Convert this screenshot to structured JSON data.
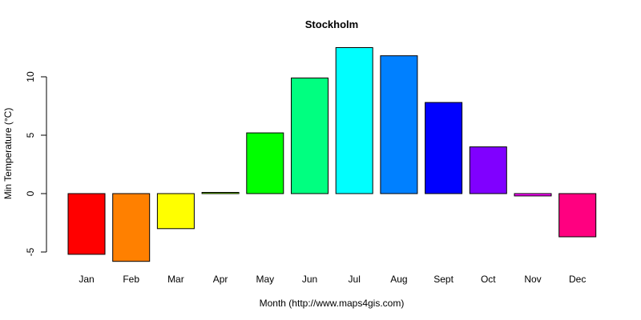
{
  "chart_data": {
    "type": "bar",
    "title": "Stockholm",
    "xlabel": "Month (http://www.maps4gis.com)",
    "ylabel": "Min Temperature (°C)",
    "categories": [
      "Jan",
      "Feb",
      "Mar",
      "Apr",
      "May",
      "Jun",
      "Jul",
      "Aug",
      "Sept",
      "Oct",
      "Nov",
      "Dec"
    ],
    "values": [
      -5.2,
      -5.8,
      -3.0,
      0.1,
      5.2,
      9.9,
      12.5,
      11.8,
      7.8,
      4.0,
      -0.2,
      -3.7
    ],
    "colors": [
      "#FF0000",
      "#FF8000",
      "#FFFF00",
      "#80FF00",
      "#00FF00",
      "#00FF80",
      "#00FFFF",
      "#0080FF",
      "#0000FF",
      "#8000FF",
      "#FF00FF",
      "#FF0080"
    ],
    "yticks": [
      -5,
      0,
      5,
      10
    ],
    "ylim": [
      -6,
      13
    ],
    "grid": false,
    "legend": "none"
  }
}
